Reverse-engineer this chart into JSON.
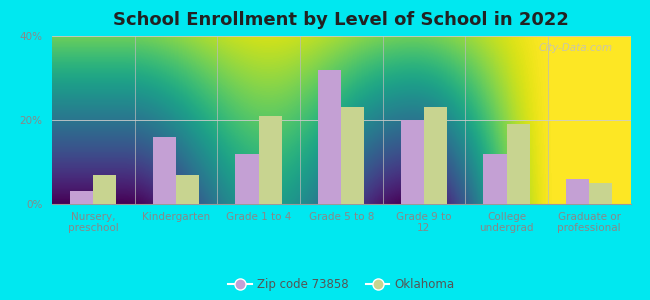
{
  "title": "School Enrollment by Level of School in 2022",
  "categories": [
    "Nursery,\npreschool",
    "Kindergarten",
    "Grade 1 to 4",
    "Grade 5 to 8",
    "Grade 9 to\n12",
    "College\nundergrad",
    "Graduate or\nprofessional"
  ],
  "zipcode_values": [
    3,
    16,
    12,
    32,
    20,
    12,
    6
  ],
  "oklahoma_values": [
    7,
    7,
    21,
    23,
    23,
    19,
    5
  ],
  "bar_color_zip": "#c4a0d4",
  "bar_color_ok": "#c8d490",
  "background_outer": "#00e8f0",
  "background_inner_top": "#f5faf5",
  "background_inner_bottom": "#d4ecd4",
  "ylabel_ticks": [
    "0%",
    "20%",
    "40%"
  ],
  "yticks": [
    0,
    20,
    40
  ],
  "ylim": [
    0,
    40
  ],
  "legend_zip": "Zip code 73858",
  "legend_ok": "Oklahoma",
  "watermark": "City-Data.com",
  "title_fontsize": 13,
  "tick_fontsize": 7.5,
  "legend_fontsize": 8.5
}
